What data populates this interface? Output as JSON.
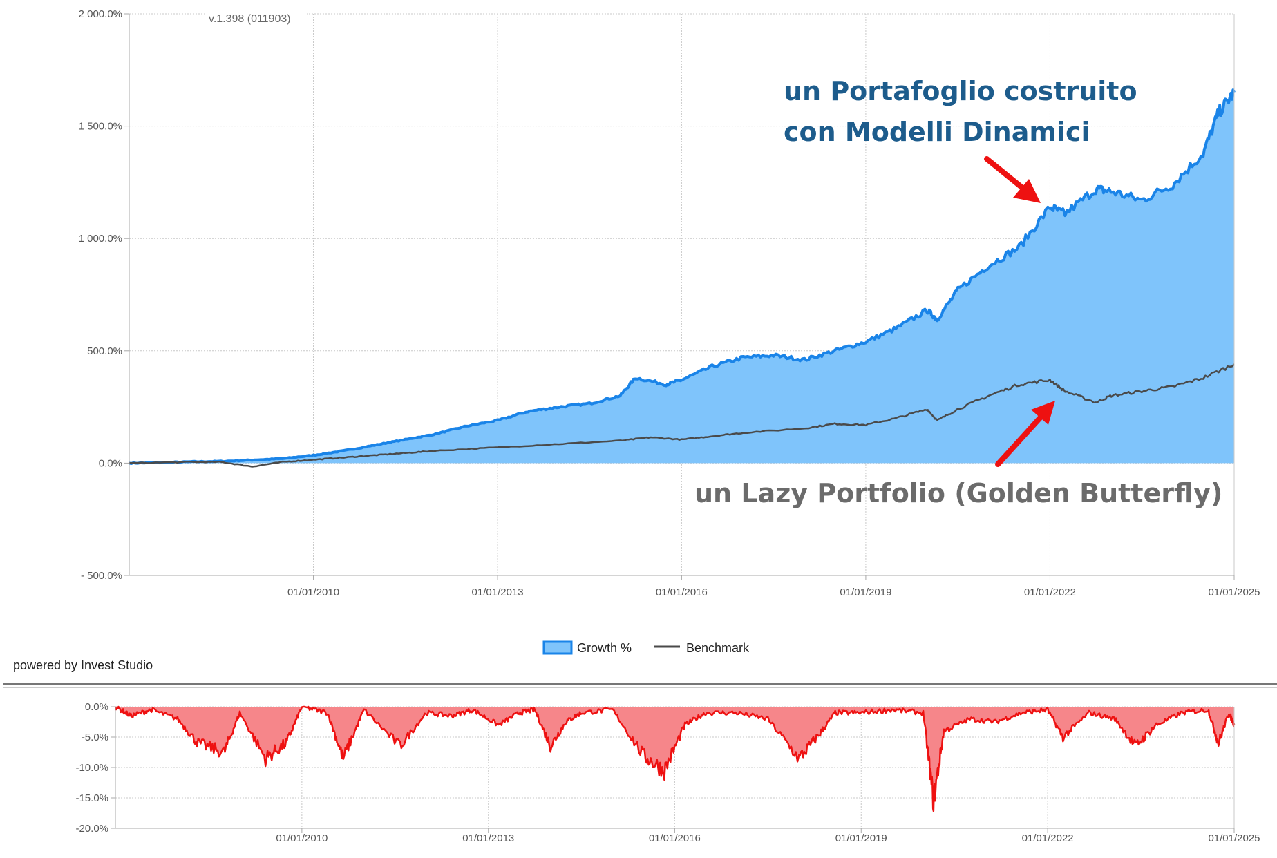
{
  "version_label": "v.1.398 (011903)",
  "powered_by": "powered by Invest Studio",
  "colors": {
    "growth_fill": "#7fc4fb",
    "growth_line": "#1a84e8",
    "benchmark_line": "#4a4a4a",
    "drawdown_fill": "#f6868a",
    "drawdown_line": "#ee1111",
    "grid": "#c8c8c8",
    "axis": "#a8a8a8",
    "annotation_blue": "#1d5c8c",
    "annotation_gray": "#6b6b6b",
    "arrow": "#ee1111"
  },
  "annotations": {
    "dynamic_line1": "un Portafoglio costruito",
    "dynamic_line2": "con Modelli Dinamici",
    "lazy": "un Lazy Portfolio (Golden Butterfly)"
  },
  "chart_data": [
    {
      "type": "area",
      "x_axis": "date",
      "x_range": [
        "2007-01-01",
        "2025-01-01"
      ],
      "ylim": [
        -500,
        2000
      ],
      "grid": true,
      "legend_placement": "bottom-center",
      "y_ticks": [
        "2 000.0%",
        "1 500.0%",
        "1 000.0%",
        "500.0%",
        "0.0%",
        "- 500.0%"
      ],
      "y_tick_values": [
        2000,
        1500,
        1000,
        500,
        0,
        -500
      ],
      "x_ticks": [
        "01/01/2010",
        "01/01/2013",
        "01/01/2016",
        "01/01/2019",
        "01/01/2022",
        "01/01/2025"
      ],
      "x_tick_values": [
        "2010-01-01",
        "2013-01-01",
        "2016-01-01",
        "2019-01-01",
        "2022-01-01",
        "2025-01-01"
      ],
      "series": [
        {
          "name": "Growth %",
          "style": "area",
          "points": [
            [
              "2007-01-01",
              0
            ],
            [
              "2007-07-01",
              2
            ],
            [
              "2008-01-01",
              6
            ],
            [
              "2008-07-01",
              8
            ],
            [
              "2009-01-01",
              14
            ],
            [
              "2009-07-01",
              20
            ],
            [
              "2010-01-01",
              35
            ],
            [
              "2010-07-01",
              55
            ],
            [
              "2011-01-01",
              80
            ],
            [
              "2011-07-01",
              105
            ],
            [
              "2012-01-01",
              130
            ],
            [
              "2012-07-01",
              165
            ],
            [
              "2013-01-01",
              190
            ],
            [
              "2013-07-01",
              230
            ],
            [
              "2014-01-01",
              250
            ],
            [
              "2014-07-01",
              265
            ],
            [
              "2015-01-01",
              300
            ],
            [
              "2015-04-01",
              380
            ],
            [
              "2015-10-01",
              350
            ],
            [
              "2016-01-01",
              370
            ],
            [
              "2016-07-01",
              430
            ],
            [
              "2017-01-01",
              470
            ],
            [
              "2017-07-01",
              480
            ],
            [
              "2018-01-01",
              460
            ],
            [
              "2018-07-01",
              500
            ],
            [
              "2019-01-01",
              540
            ],
            [
              "2019-07-01",
              600
            ],
            [
              "2020-01-01",
              680
            ],
            [
              "2020-03-01",
              640
            ],
            [
              "2020-07-01",
              770
            ],
            [
              "2021-01-01",
              880
            ],
            [
              "2021-07-01",
              960
            ],
            [
              "2022-01-01",
              1140
            ],
            [
              "2022-04-01",
              1110
            ],
            [
              "2022-10-01",
              1220
            ],
            [
              "2023-01-01",
              1210
            ],
            [
              "2023-07-01",
              1170
            ],
            [
              "2024-01-01",
              1240
            ],
            [
              "2024-07-01",
              1380
            ],
            [
              "2024-10-01",
              1560
            ],
            [
              "2025-01-01",
              1650
            ]
          ]
        },
        {
          "name": "Benchmark",
          "style": "line",
          "points": [
            [
              "2007-01-01",
              0
            ],
            [
              "2008-01-01",
              5
            ],
            [
              "2008-07-01",
              5
            ],
            [
              "2009-01-01",
              -15
            ],
            [
              "2009-07-01",
              5
            ],
            [
              "2010-01-01",
              15
            ],
            [
              "2010-07-01",
              25
            ],
            [
              "2011-01-01",
              35
            ],
            [
              "2011-07-01",
              45
            ],
            [
              "2012-01-01",
              55
            ],
            [
              "2013-01-01",
              70
            ],
            [
              "2014-01-01",
              85
            ],
            [
              "2015-01-01",
              100
            ],
            [
              "2015-07-01",
              115
            ],
            [
              "2016-01-01",
              105
            ],
            [
              "2016-07-01",
              120
            ],
            [
              "2017-01-01",
              135
            ],
            [
              "2018-01-01",
              155
            ],
            [
              "2018-07-01",
              175
            ],
            [
              "2019-01-01",
              170
            ],
            [
              "2019-07-01",
              200
            ],
            [
              "2020-01-01",
              240
            ],
            [
              "2020-03-01",
              190
            ],
            [
              "2020-07-01",
              240
            ],
            [
              "2021-01-01",
              300
            ],
            [
              "2021-07-01",
              350
            ],
            [
              "2022-01-01",
              370
            ],
            [
              "2022-04-01",
              320
            ],
            [
              "2022-10-01",
              270
            ],
            [
              "2023-01-01",
              300
            ],
            [
              "2023-07-01",
              320
            ],
            [
              "2024-01-01",
              340
            ],
            [
              "2024-07-01",
              380
            ],
            [
              "2025-01-01",
              440
            ]
          ]
        }
      ]
    },
    {
      "type": "area",
      "x_axis": "date",
      "x_range": [
        "2007-01-01",
        "2025-01-01"
      ],
      "ylim": [
        -20,
        0
      ],
      "grid": true,
      "y_ticks": [
        "0.0%",
        "-5.0%",
        "-10.0%",
        "-15.0%",
        "-20.0%"
      ],
      "y_tick_values": [
        0,
        -5,
        -10,
        -15,
        -20
      ],
      "x_ticks": [
        "01/01/2010",
        "01/01/2013",
        "01/01/2016",
        "01/01/2019",
        "01/01/2022",
        "01/01/2025"
      ],
      "x_tick_values": [
        "2010-01-01",
        "2013-01-01",
        "2016-01-01",
        "2019-01-01",
        "2022-01-01",
        "2025-01-01"
      ],
      "series": [
        {
          "style": "area",
          "points": [
            [
              "2007-01-01",
              0
            ],
            [
              "2007-04-01",
              -1.5
            ],
            [
              "2007-08-01",
              -0.5
            ],
            [
              "2008-01-01",
              -2
            ],
            [
              "2008-05-01",
              -6
            ],
            [
              "2008-10-01",
              -7.5
            ],
            [
              "2009-01-01",
              -1
            ],
            [
              "2009-06-01",
              -8.5
            ],
            [
              "2009-10-01",
              -6
            ],
            [
              "2010-01-01",
              0
            ],
            [
              "2010-06-01",
              -1
            ],
            [
              "2010-09-01",
              -8.5
            ],
            [
              "2011-01-01",
              -0.5
            ],
            [
              "2011-08-01",
              -6.5
            ],
            [
              "2012-01-01",
              -1
            ],
            [
              "2012-06-01",
              -1.5
            ],
            [
              "2012-10-01",
              -0.5
            ],
            [
              "2013-03-01",
              -3
            ],
            [
              "2013-07-01",
              -1
            ],
            [
              "2013-10-01",
              -0.5
            ],
            [
              "2014-01-01",
              -6.5
            ],
            [
              "2014-04-01",
              -2.5
            ],
            [
              "2014-07-01",
              -1
            ],
            [
              "2015-01-01",
              -0.5
            ],
            [
              "2015-07-01",
              -8
            ],
            [
              "2015-11-01",
              -10.5
            ],
            [
              "2016-03-01",
              -3
            ],
            [
              "2016-07-01",
              -1
            ],
            [
              "2017-01-01",
              -1
            ],
            [
              "2017-07-01",
              -2
            ],
            [
              "2018-01-01",
              -8.5
            ],
            [
              "2018-05-01",
              -4.5
            ],
            [
              "2018-08-01",
              -1
            ],
            [
              "2019-01-01",
              -1
            ],
            [
              "2019-07-01",
              -0.5
            ],
            [
              "2020-01-01",
              -1
            ],
            [
              "2020-03-01",
              -15.5
            ],
            [
              "2020-05-01",
              -4
            ],
            [
              "2020-10-01",
              -2
            ],
            [
              "2021-03-01",
              -2.5
            ],
            [
              "2021-08-01",
              -1
            ],
            [
              "2022-01-01",
              -0.5
            ],
            [
              "2022-04-01",
              -5
            ],
            [
              "2022-09-01",
              -1
            ],
            [
              "2023-02-01",
              -2
            ],
            [
              "2023-06-01",
              -6.5
            ],
            [
              "2023-10-01",
              -3
            ],
            [
              "2024-03-01",
              -1
            ],
            [
              "2024-08-01",
              -0.5
            ],
            [
              "2024-10-01",
              -6
            ],
            [
              "2024-12-01",
              -1
            ],
            [
              "2025-01-01",
              -3
            ]
          ]
        }
      ]
    }
  ],
  "legend": {
    "growth": "Growth %",
    "benchmark": "Benchmark"
  }
}
